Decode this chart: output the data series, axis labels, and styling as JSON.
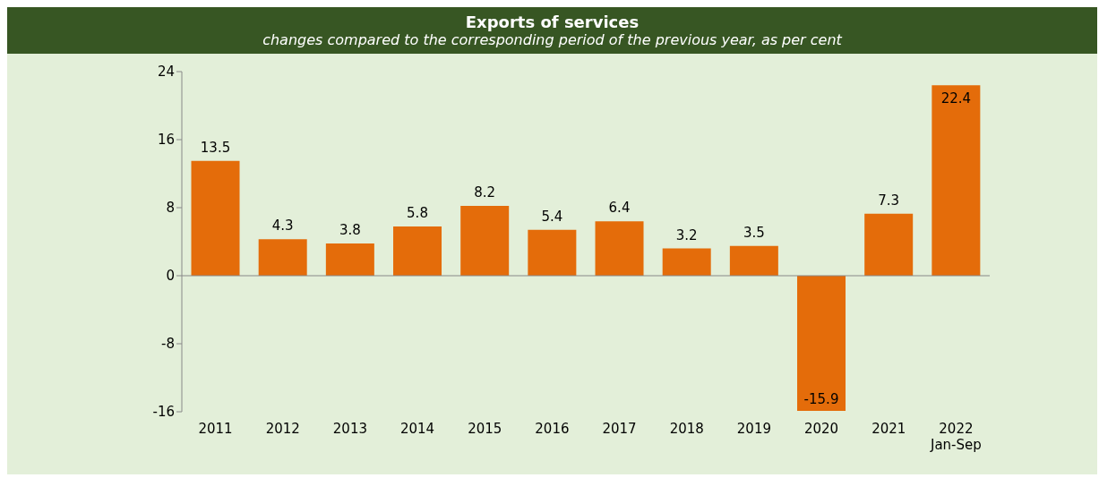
{
  "chart_data": {
    "type": "bar",
    "title": "Exports of services",
    "subtitle": "changes compared to the corresponding period of the previous year, as per cent",
    "categories": [
      "2011",
      "2012",
      "2013",
      "2014",
      "2015",
      "2016",
      "2017",
      "2018",
      "2019",
      "2020",
      "2021",
      "2022\nJan-Sep"
    ],
    "values": [
      13.5,
      4.3,
      3.8,
      5.8,
      8.2,
      5.4,
      6.4,
      3.2,
      3.5,
      -15.9,
      7.3,
      22.4
    ],
    "color": "#e46c0a",
    "ylim": [
      -16,
      24
    ],
    "yticks": [
      -16,
      -8,
      0,
      8,
      16,
      24
    ],
    "data_labels": true
  }
}
